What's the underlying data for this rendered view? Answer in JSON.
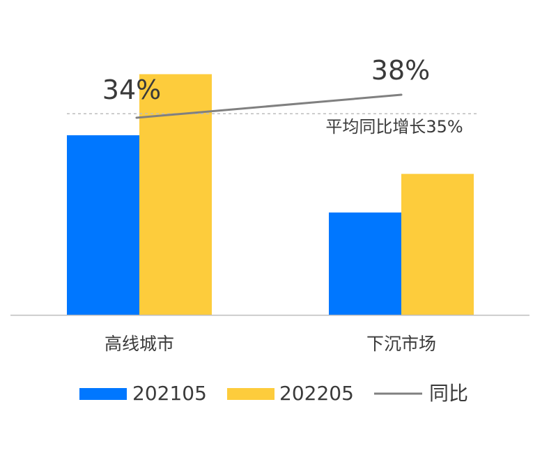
{
  "chart_data": {
    "type": "bar",
    "categories": [
      "高线城市",
      "下沉市场"
    ],
    "series": [
      {
        "name": "202105",
        "values": [
          100,
          57
        ],
        "color": "#0077FF"
      },
      {
        "name": "202205",
        "values": [
          134,
          78.5
        ],
        "color": "#FDCC3C"
      }
    ],
    "line_series": {
      "name": "同比",
      "values": [
        34,
        38
      ],
      "labels": [
        "34%",
        "38%"
      ],
      "color": "#808080"
    },
    "reference_line": {
      "value": 112,
      "label": "平均同比增长35%",
      "color": "#BDBDBD",
      "style": "dashed"
    },
    "ylim": [
      0,
      140
    ],
    "grid": false,
    "legend_position": "bottom"
  }
}
